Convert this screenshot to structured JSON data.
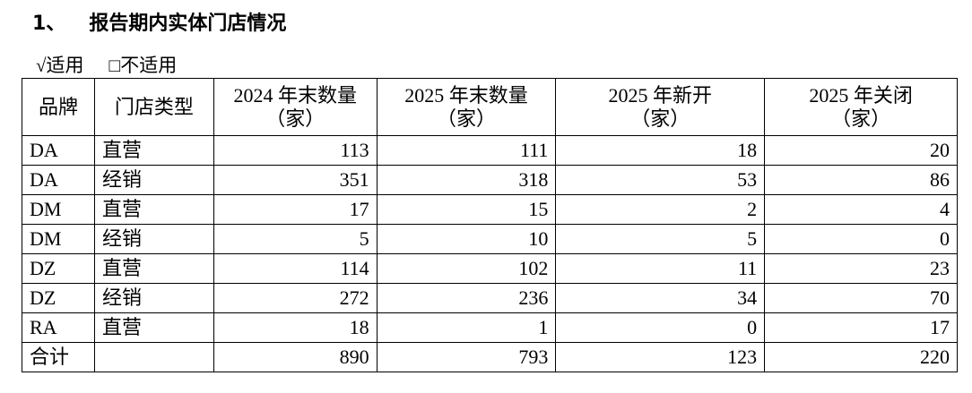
{
  "heading": {
    "number": "1、",
    "title": "报告期内实体门店情况"
  },
  "applicability": {
    "applicable": "√适用",
    "not_applicable": "□不适用"
  },
  "table": {
    "columns": [
      "品牌",
      "门店类型",
      "2024 年末数量（家）",
      "2025 年末数量（家）",
      "2025 年新开（家）",
      "2025 年关闭（家）"
    ],
    "rows": [
      [
        "DA",
        "直营",
        113,
        111,
        18,
        20
      ],
      [
        "DA",
        "经销",
        351,
        318,
        53,
        86
      ],
      [
        "DM",
        "直营",
        17,
        15,
        2,
        4
      ],
      [
        "DM",
        "经销",
        5,
        10,
        5,
        0
      ],
      [
        "DZ",
        "直营",
        114,
        102,
        11,
        23
      ],
      [
        "DZ",
        "经销",
        272,
        236,
        34,
        70
      ],
      [
        "RA",
        "直营",
        18,
        1,
        0,
        17
      ],
      [
        "合计",
        null,
        890,
        793,
        123,
        220
      ]
    ]
  }
}
